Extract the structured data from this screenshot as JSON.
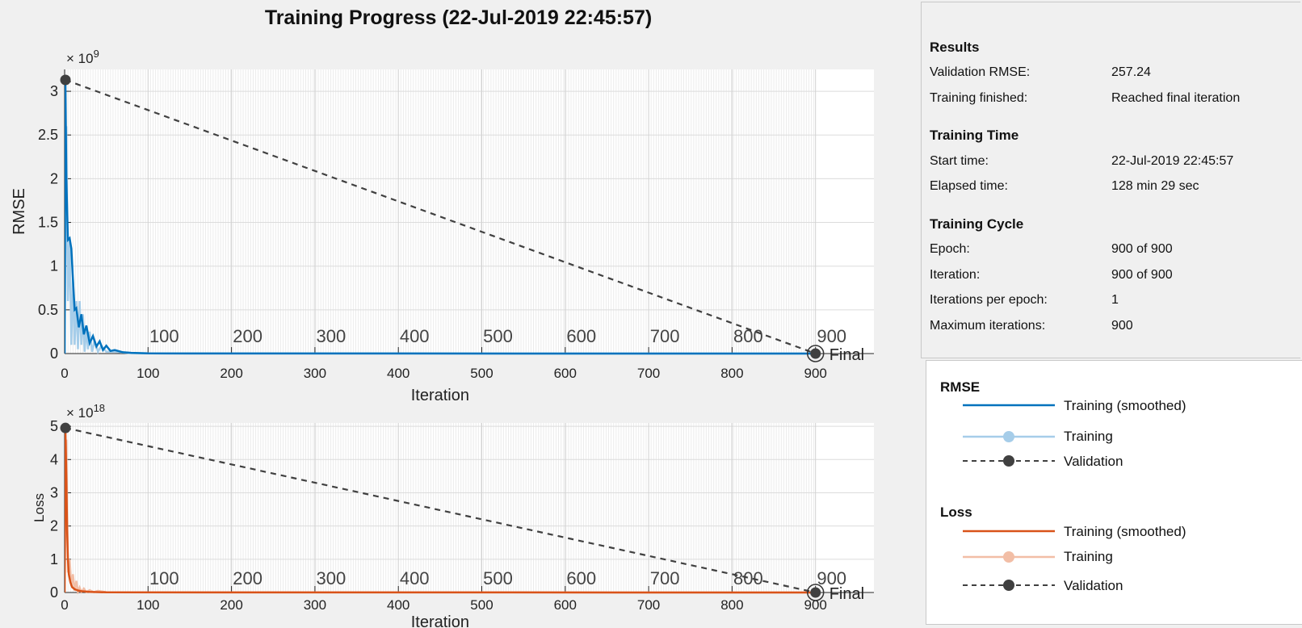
{
  "window": {
    "title": "Training Progress (22-Jul-2019 22:45:57)"
  },
  "results": {
    "title": "Results",
    "rows": [
      {
        "label": "Validation RMSE:",
        "value": "257.24"
      },
      {
        "label": "Training finished:",
        "value": "Reached final iteration"
      }
    ]
  },
  "training_time": {
    "title": "Training Time",
    "rows": [
      {
        "label": "Start time:",
        "value": "22-Jul-2019 22:45:57"
      },
      {
        "label": "Elapsed time:",
        "value": "128 min 29 sec"
      }
    ]
  },
  "training_cycle": {
    "title": "Training Cycle",
    "rows": [
      {
        "label": "Epoch:",
        "value": "900 of 900"
      },
      {
        "label": "Iteration:",
        "value": "900 of 900"
      },
      {
        "label": "Iterations per epoch:",
        "value": "1"
      },
      {
        "label": "Maximum iterations:",
        "value": "900"
      }
    ]
  },
  "legend": {
    "rmse": {
      "title": "RMSE",
      "items": [
        {
          "label": "Training (smoothed)",
          "style": "solid",
          "color": "#0072bd"
        },
        {
          "label": "Training",
          "style": "solid-marker",
          "color": "#a6cde9"
        },
        {
          "label": "Validation",
          "style": "dashed-marker",
          "color": "#404040"
        }
      ]
    },
    "loss": {
      "title": "Loss",
      "items": [
        {
          "label": "Training (smoothed)",
          "style": "solid",
          "color": "#d95319"
        },
        {
          "label": "Training",
          "style": "solid-marker",
          "color": "#f2bea6"
        },
        {
          "label": "Validation",
          "style": "dashed-marker",
          "color": "#404040"
        }
      ]
    }
  },
  "chart_data": [
    {
      "type": "line",
      "ylabel": "RMSE",
      "xlabel": "Iteration",
      "y_exponent_label": "× 10",
      "y_exponent": "9",
      "xlim": [
        0,
        970
      ],
      "ylim": [
        0,
        3.25
      ],
      "x_ticks": [
        0,
        100,
        200,
        300,
        400,
        500,
        600,
        700,
        800,
        900
      ],
      "y_ticks": [
        0,
        0.5,
        1,
        1.5,
        2,
        2.5,
        3
      ],
      "y_tick_labels": [
        "0",
        "0.5",
        "1",
        "1.5",
        "2",
        "2.5",
        "3"
      ],
      "epoch_labels": [
        "100",
        "200",
        "300",
        "400",
        "500",
        "600",
        "700",
        "800",
        "900"
      ],
      "final_label": "Final",
      "grid": true,
      "series": [
        {
          "name": "Training (smoothed)",
          "color": "#0072bd",
          "x": [
            0,
            1,
            2,
            4,
            6,
            8,
            10,
            12,
            14,
            17,
            20,
            23,
            26,
            30,
            34,
            38,
            42,
            46,
            50,
            55,
            60,
            70,
            80,
            100,
            150,
            900
          ],
          "y": [
            0,
            3.1,
            2.0,
            1.3,
            1.32,
            1.2,
            0.85,
            0.5,
            0.52,
            0.3,
            0.45,
            0.22,
            0.32,
            0.12,
            0.2,
            0.08,
            0.14,
            0.04,
            0.09,
            0.03,
            0.04,
            0.015,
            0.008,
            0.003,
            0.001,
            0
          ]
        },
        {
          "name": "Training",
          "color": "#a6cde9",
          "x": [
            0,
            2,
            4,
            6,
            8,
            10,
            12,
            14,
            16,
            18,
            20,
            22,
            24,
            26,
            28,
            30,
            33,
            36,
            40,
            44,
            50,
            60,
            80,
            120,
            900
          ],
          "y": [
            0,
            2.6,
            0.6,
            1.3,
            0.1,
            0.85,
            0.1,
            0.6,
            0.05,
            0.6,
            0.1,
            0.45,
            0.02,
            0.3,
            0.05,
            0.25,
            0.02,
            0.15,
            0.02,
            0.09,
            0.02,
            0.02,
            0.005,
            0.001,
            0
          ]
        },
        {
          "name": "Validation",
          "color": "#404040",
          "dashed": true,
          "x": [
            1,
            900
          ],
          "y": [
            3.13,
            3e-07
          ]
        }
      ]
    },
    {
      "type": "line",
      "ylabel": "Loss",
      "xlabel": "Iteration",
      "y_exponent_label": "× 10",
      "y_exponent": "18",
      "xlim": [
        0,
        970
      ],
      "ylim": [
        0,
        5.1
      ],
      "x_ticks": [
        0,
        100,
        200,
        300,
        400,
        500,
        600,
        700,
        800,
        900
      ],
      "y_ticks": [
        0,
        1,
        2,
        3,
        4,
        5
      ],
      "y_tick_labels": [
        "0",
        "1",
        "2",
        "3",
        "4",
        "5"
      ],
      "epoch_labels": [
        "100",
        "200",
        "300",
        "400",
        "500",
        "600",
        "700",
        "800",
        "900"
      ],
      "final_label": "Final",
      "grid": true,
      "series": [
        {
          "name": "Training (smoothed)",
          "color": "#d95319",
          "x": [
            0,
            1,
            2,
            3,
            4,
            5,
            7,
            9,
            12,
            16,
            20,
            30,
            50,
            900
          ],
          "y": [
            0,
            4.9,
            3.5,
            1.9,
            1.0,
            0.55,
            0.3,
            0.16,
            0.1,
            0.06,
            0.04,
            0.02,
            0.005,
            0
          ]
        },
        {
          "name": "Training",
          "color": "#f2bea6",
          "x": [
            0,
            2,
            4,
            6,
            8,
            10,
            12,
            14,
            16,
            18,
            20,
            23,
            26,
            30,
            35,
            40,
            50,
            60,
            900
          ],
          "y": [
            0,
            4.6,
            0.6,
            1.0,
            0.2,
            0.55,
            0.05,
            0.35,
            0.02,
            0.15,
            0.02,
            0.12,
            0.01,
            0.07,
            0.01,
            0.05,
            0.01,
            0.005,
            0
          ]
        },
        {
          "name": "Validation",
          "color": "#404040",
          "dashed": true,
          "x": [
            1,
            900
          ],
          "y": [
            4.95,
            1e-07
          ]
        }
      ]
    }
  ]
}
